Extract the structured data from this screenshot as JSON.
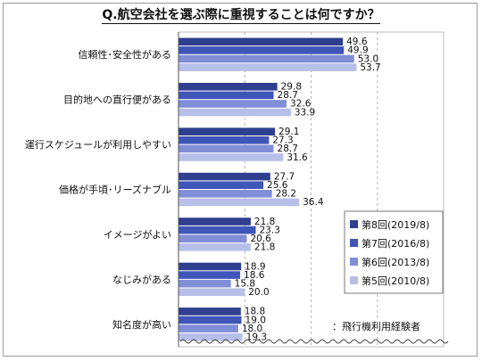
{
  "title": "Q.航空会社を選ぶ際に重視することは何ですか？",
  "note": "：飛行機利用経験者",
  "chart_data": {
    "type": "bar",
    "orientation": "horizontal",
    "categories": [
      "信頼性･安全性がある",
      "目的地への直行便がある",
      "運行スケジュールが利用しやすい",
      "価格が手頃･リーズナブル",
      "イメージがよい",
      "なじみがある",
      "知名度が高い"
    ],
    "series": [
      {
        "name": "第8回(2019/8)",
        "color": "#2e3f8f",
        "values": [
          49.6,
          29.8,
          29.1,
          27.7,
          21.8,
          18.9,
          18.8
        ]
      },
      {
        "name": "第7回(2016/8)",
        "color": "#3f55b8",
        "values": [
          49.9,
          28.7,
          27.3,
          25.6,
          23.3,
          18.6,
          19.0
        ]
      },
      {
        "name": "第6回(2013/8)",
        "color": "#7f8ed6",
        "values": [
          53.0,
          32.6,
          28.7,
          28.2,
          20.6,
          15.8,
          18.0
        ]
      },
      {
        "name": "第5回(2010/8)",
        "color": "#b7bfe9",
        "values": [
          53.7,
          33.9,
          31.6,
          36.4,
          21.8,
          20.0,
          19.3
        ]
      }
    ],
    "xlim": [
      0,
      80
    ],
    "grid": true,
    "legend": "right"
  }
}
